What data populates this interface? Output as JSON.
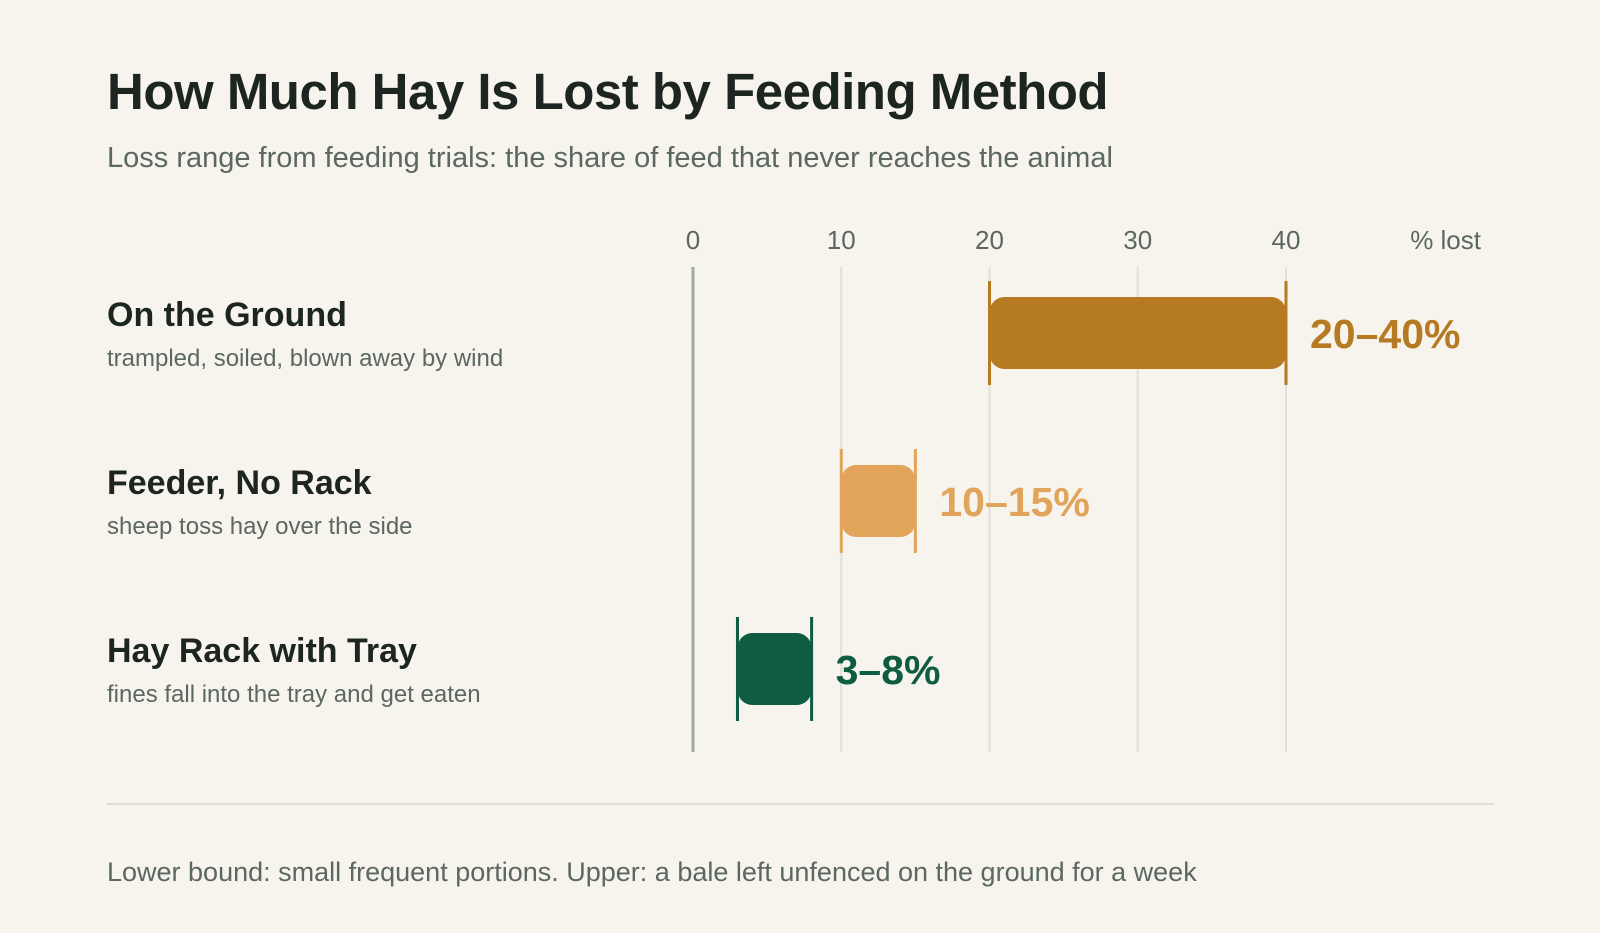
{
  "title": "How Much Hay Is Lost by Feeding Method",
  "subtitle": "Loss range from feeding trials: the share of feed that never reaches the animal",
  "footnote": "Lower bound: small frequent portions. Upper: a bale left unfenced on the ground for a week",
  "chart_data": {
    "type": "bar",
    "orientation": "horizontal-range",
    "xlabel": "% lost",
    "xlim": [
      0,
      40
    ],
    "xticks": [
      0,
      10,
      20,
      30,
      40
    ],
    "xtick_labels": [
      "0",
      "10",
      "20",
      "30",
      "40"
    ],
    "grid": true,
    "categories": [
      "On the Ground",
      "Feeder, No Rack",
      "Hay Rack with Tray"
    ],
    "descriptions": [
      "trampled, soiled, blown away by wind",
      "sheep toss hay over the side",
      "fines fall into the tray and get eaten"
    ],
    "ranges": [
      [
        20,
        40
      ],
      [
        10,
        15
      ],
      [
        3,
        8
      ]
    ],
    "value_labels": [
      "20–40%",
      "10–15%",
      "3–8%"
    ],
    "colors": [
      "#b67a22",
      "#e2a45a",
      "#0e5c42"
    ],
    "zero_line_color": "#9cb092",
    "grid_color": "#e2dfd5"
  }
}
